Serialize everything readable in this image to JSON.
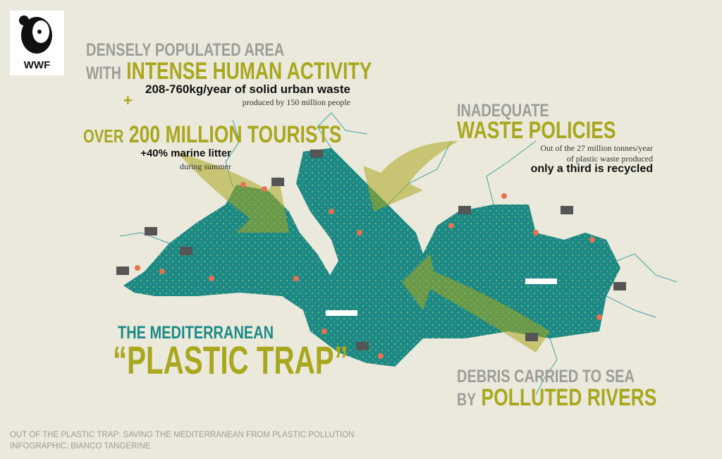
{
  "logo": {
    "text": "WWF",
    "icon": "panda-icon"
  },
  "block1": {
    "line1": "DENSELY POPULATED AREA",
    "line2_prefix": "WITH",
    "line2_highlight": "INTENSE HUMAN ACTIVITY",
    "stat": "208-760kg/year of solid urban waste",
    "stat_sub": "produced by 150 million people",
    "plus": "+"
  },
  "block2": {
    "prefix": "OVER",
    "highlight": "200 MILLION TOURISTS",
    "stat": "+40% marine litter",
    "stat_sub": "during summer"
  },
  "block3": {
    "line1": "INADEQUATE",
    "line2": "WASTE POLICIES",
    "text1": "Out of the 27 million tonnes/year",
    "text2": "of plastic waste produced",
    "stat": "only a third is recycled"
  },
  "block4": {
    "line1": "THE MEDITERRANEAN",
    "line2": "“PLASTIC TRAP”"
  },
  "block5": {
    "line1": "DEBRIS CARRIED TO SEA",
    "line2_prefix": "BY",
    "line2_highlight": "POLLUTED RIVERS"
  },
  "footer": {
    "line1": "OUT OF THE PLASTIC TRAP: SAVING THE MEDITERRANEAN FROM PLASTIC POLLUTION",
    "line2": "INFOGRAPHIC: BIANCO TANGERINE"
  },
  "colors": {
    "background": "#ebe9dc",
    "olive": "#a9a71d",
    "sea": "#1a8a86",
    "grey": "#9d9c98",
    "umbrella": "#e8724f",
    "factory": "#555555"
  },
  "map_icons": [
    "factory-icon",
    "beach-umbrella-icon",
    "ship-icon",
    "river-line"
  ]
}
